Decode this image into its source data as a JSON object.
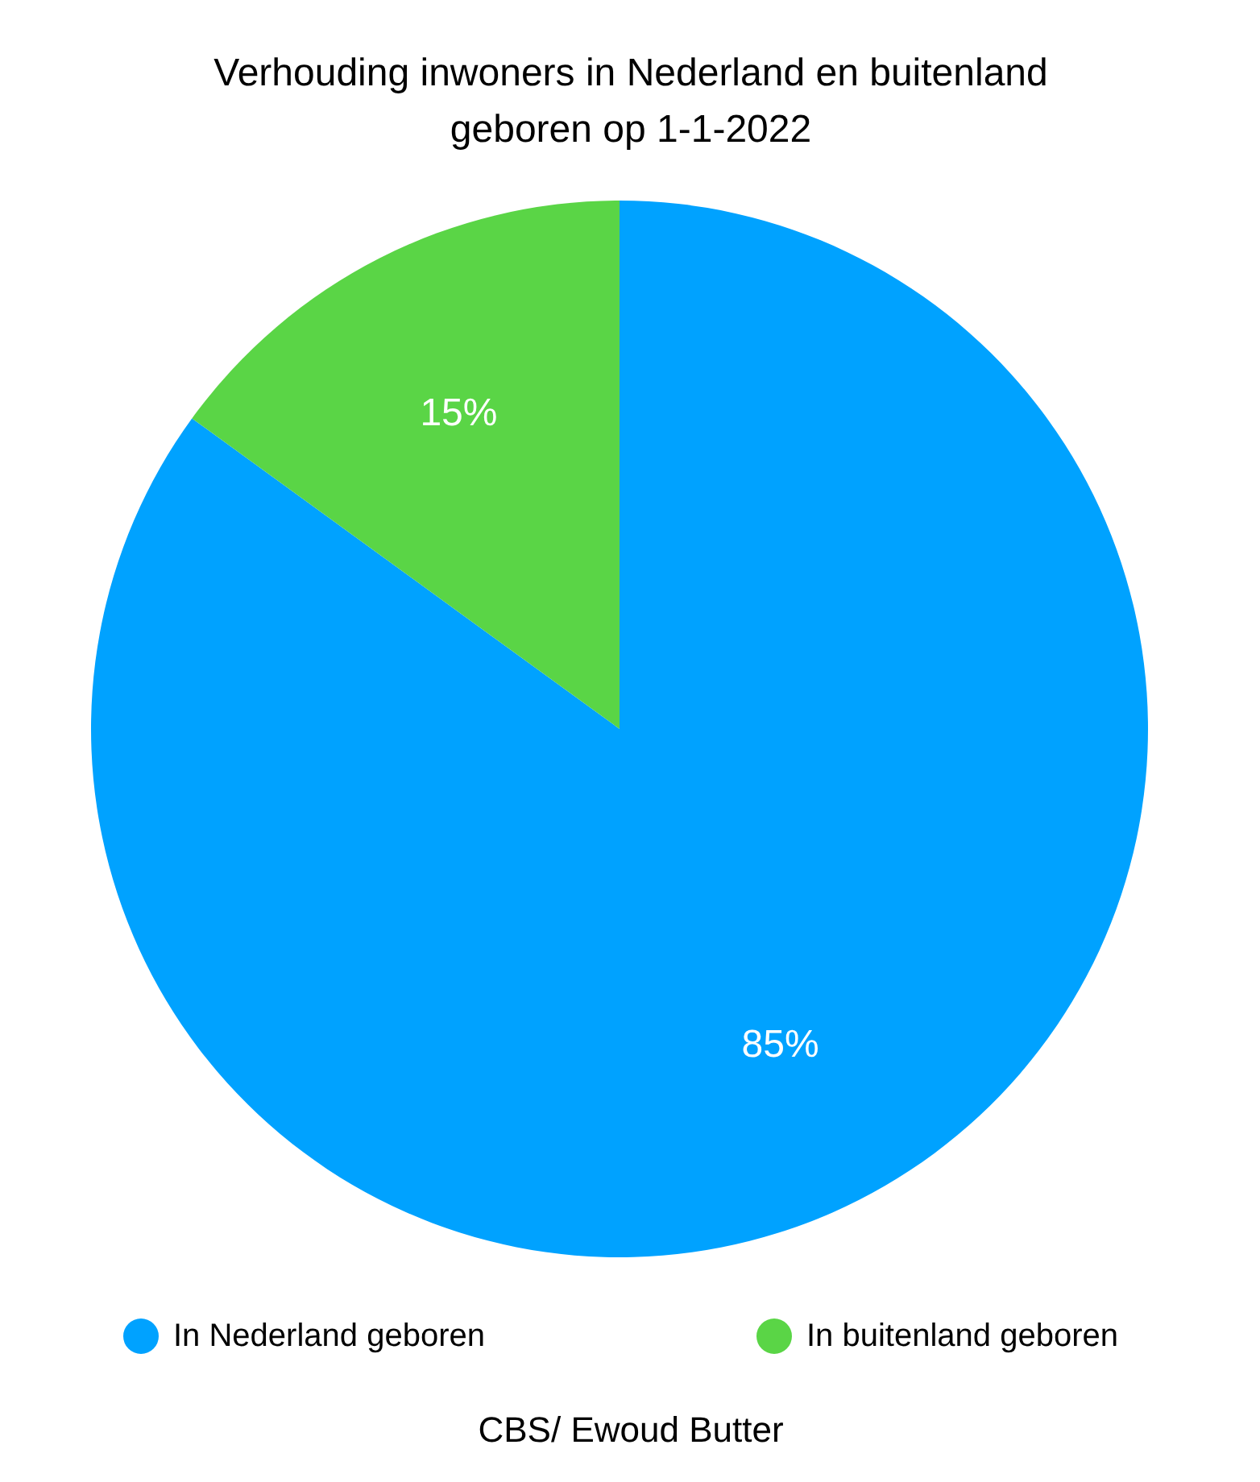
{
  "chart_data": {
    "type": "pie",
    "title": "Verhouding inwoners in Nederland en buitenland geboren op 1-1-2022",
    "categories": [
      "In Nederland geboren",
      "In buitenland geboren"
    ],
    "values": [
      85,
      15
    ],
    "colors": [
      "#00a2ff",
      "#5ad546"
    ],
    "value_labels": [
      "85%",
      "15%"
    ],
    "legend": "bottom",
    "annotations": [
      "CBS/ Ewoud Butter"
    ]
  }
}
